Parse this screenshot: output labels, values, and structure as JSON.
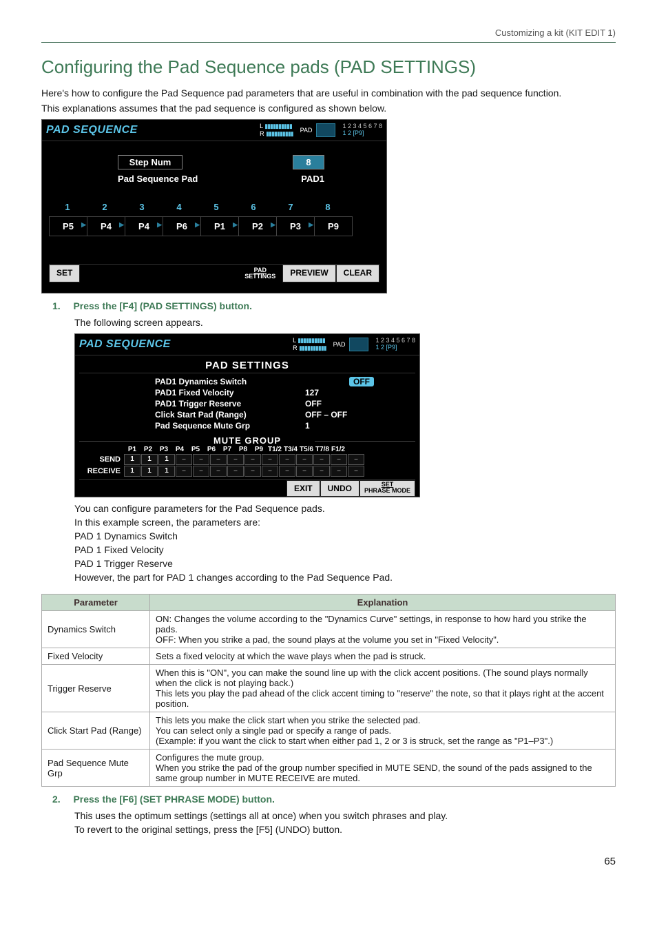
{
  "running_head": "Customizing a kit (KIT EDIT 1)",
  "section_title": "Configuring the Pad Sequence pads (PAD SETTINGS)",
  "intro1": "Here's how to configure the Pad Sequence pad parameters that are useful in combination with the pad sequence function.",
  "intro2": "This explanations assumes that the pad sequence is configured as shown below.",
  "ss1": {
    "title": "PAD SEQUENCE",
    "meter_L": "L",
    "meter_R": "R",
    "pad_label": "PAD",
    "pad_grid_line1": "1 2 3 4 5 6 7 8",
    "pad_grid_line2": "1 2 [P9]",
    "field1_label": "Step Num",
    "field1_value": "8",
    "field2_label": "Pad Sequence Pad",
    "field2_value": "PAD1",
    "step_numbers": [
      "1",
      "2",
      "3",
      "4",
      "5",
      "6",
      "7",
      "8"
    ],
    "step_values": [
      "P5",
      "P4",
      "P4",
      "P6",
      "P1",
      "P2",
      "P3",
      "P9"
    ],
    "btn_set": "SET",
    "btn_pad_settings_l1": "PAD",
    "btn_pad_settings_l2": "SETTINGS",
    "btn_preview": "PREVIEW",
    "btn_clear": "CLEAR"
  },
  "step1": {
    "num": "1.",
    "title": "Press the [F4] (PAD SETTINGS) button.",
    "following": "The following screen appears."
  },
  "ss2": {
    "title": "PAD SEQUENCE",
    "heading": "PAD SETTINGS",
    "rows": [
      {
        "label": "PAD1 Dynamics Switch",
        "value": "OFF",
        "badge": true
      },
      {
        "label": "PAD1 Fixed Velocity",
        "value": "127",
        "badge": false
      },
      {
        "label": "PAD1 Trigger Reserve",
        "value": "OFF",
        "badge": false
      },
      {
        "label": "Click Start Pad (Range)",
        "value": "OFF   –   OFF",
        "badge": false
      },
      {
        "label": "Pad Sequence Mute Grp",
        "value": "1",
        "badge": false
      }
    ],
    "mute_heading": "MUTE GROUP",
    "mute_cols": [
      "P1",
      "P2",
      "P3",
      "P4",
      "P5",
      "P6",
      "P7",
      "P8",
      "P9",
      "T1/2",
      "T3/4",
      "T5/6",
      "T7/8",
      "F1/2"
    ],
    "mute_send_label": "SEND",
    "mute_recv_label": "RECEIVE",
    "mute_send": [
      "1",
      "1",
      "1",
      "off",
      "off",
      "off",
      "off",
      "off",
      "off",
      "off",
      "off",
      "off",
      "off",
      "off"
    ],
    "mute_recv": [
      "1",
      "1",
      "1",
      "off",
      "off",
      "off",
      "off",
      "off",
      "off",
      "off",
      "off",
      "off",
      "off",
      "off"
    ],
    "btn_exit": "EXIT",
    "btn_undo": "UNDO",
    "btn_set_l1": "SET",
    "btn_set_l2": "PHRASE MODE"
  },
  "after_ss2_p1": "You can configure parameters for the Pad Sequence pads.",
  "after_ss2_p2": "In this example screen, the parameters are:",
  "after_ss2_p3": "PAD 1 Dynamics Switch",
  "after_ss2_p4": "PAD 1 Fixed Velocity",
  "after_ss2_p5": "PAD 1 Trigger Reserve",
  "after_ss2_p6": "However, the part for PAD 1 changes according to the Pad Sequence Pad.",
  "param_table": {
    "head_param": "Parameter",
    "head_expl": "Explanation",
    "rows": [
      {
        "p": "Dynamics Switch",
        "e": "ON: Changes the volume according to the \"Dynamics Curve\" settings, in response to how hard you strike the pads.\nOFF: When you strike a pad, the sound plays at the volume you set in \"Fixed Velocity\"."
      },
      {
        "p": "Fixed Velocity",
        "e": "Sets a fixed velocity at which the wave plays when the pad is struck."
      },
      {
        "p": "Trigger Reserve",
        "e": "When this is \"ON\", you can make the sound line up with the click accent positions. (The sound plays normally when the click is not playing back.)\nThis lets you play the pad ahead of the click accent timing to \"reserve\" the note, so that it plays right at the accent position."
      },
      {
        "p": "Click Start Pad (Range)",
        "e": "This lets you make the click start when you strike the selected pad.\nYou can select only a single pad or specify a range of pads.\n(Example: if you want the click to start when either pad 1, 2 or 3 is struck, set the range as \"P1–P3\".)"
      },
      {
        "p": "Pad Sequence Mute Grp",
        "e": "Configures the mute group.\nWhen you strike the pad of the group number specified in MUTE SEND, the sound of the pads assigned to the same group number in MUTE RECEIVE are muted."
      }
    ]
  },
  "step2": {
    "num": "2.",
    "title": "Press the [F6] (SET PHRASE MODE) button.",
    "body1": "This uses the optimum settings (settings all at once) when you switch phrases and play.",
    "body2": "To revert to the original settings, press the [F5] (UNDO) button."
  },
  "page_num": "65"
}
